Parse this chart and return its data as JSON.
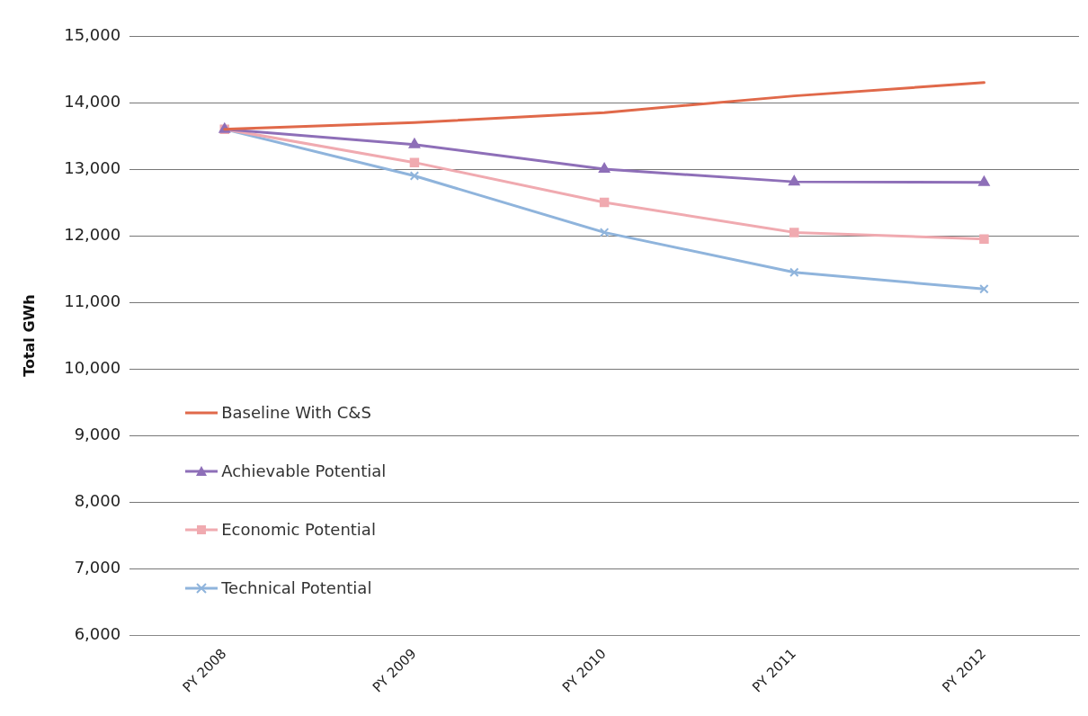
{
  "chart_data": {
    "type": "line",
    "ylabel": "Total GWh",
    "categories": [
      "PY 2008",
      "PY 2009",
      "PY 2010",
      "PY 2011",
      "PY 2012"
    ],
    "series": [
      {
        "name": "Baseline With C&S",
        "color": "#e0694a",
        "marker": "none",
        "values": [
          13600,
          13700,
          13850,
          14100,
          14300
        ]
      },
      {
        "name": "Achievable Potential",
        "color": "#8e6fb8",
        "marker": "triangle",
        "values": [
          13600,
          13370,
          13000,
          12810,
          12800
        ]
      },
      {
        "name": "Economic Potential",
        "color": "#f0aab0",
        "marker": "square",
        "values": [
          13600,
          13100,
          12500,
          12050,
          11950
        ]
      },
      {
        "name": "Technical Potential",
        "color": "#8fb4dc",
        "marker": "cross",
        "values": [
          13600,
          12900,
          12050,
          11450,
          11200
        ]
      }
    ],
    "ylim": [
      6000,
      15000
    ],
    "yticks": [
      {
        "value": 6000,
        "label": "6,000"
      },
      {
        "value": 7000,
        "label": "7,000"
      },
      {
        "value": 8000,
        "label": "8,000"
      },
      {
        "value": 9000,
        "label": "9,000"
      },
      {
        "value": 10000,
        "label": "10,000"
      },
      {
        "value": 11000,
        "label": "11,000"
      },
      {
        "value": 12000,
        "label": "12,000"
      },
      {
        "value": 13000,
        "label": "13,000"
      },
      {
        "value": 14000,
        "label": "14,000"
      },
      {
        "value": 15000,
        "label": "15,000"
      }
    ],
    "grid": "y",
    "legend": "bottom left"
  }
}
